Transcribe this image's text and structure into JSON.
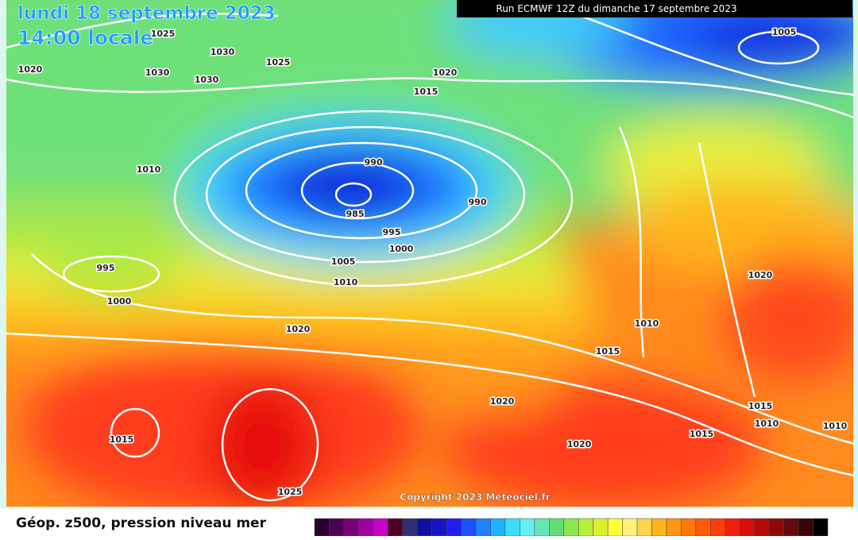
{
  "header": {
    "date": "lundi 18 septembre 2023",
    "time": "14:00 locale",
    "run": "Run ECMWF 12Z du dimanche 17 septembre 2023"
  },
  "isobar_labels": [
    1025,
    1030,
    1030,
    1030,
    1025,
    1020,
    1020,
    1015,
    1005,
    1010,
    990,
    985,
    990,
    995,
    1000,
    995,
    1000,
    1005,
    1010,
    1020,
    1020,
    1010,
    1015,
    1020,
    1015,
    1010,
    1010,
    1015,
    1015,
    1020,
    1025
  ],
  "copyright": "Copyright 2023 Meteociel.fr",
  "legend": {
    "title": "Géop. z500, pression niveau mer"
  }
}
